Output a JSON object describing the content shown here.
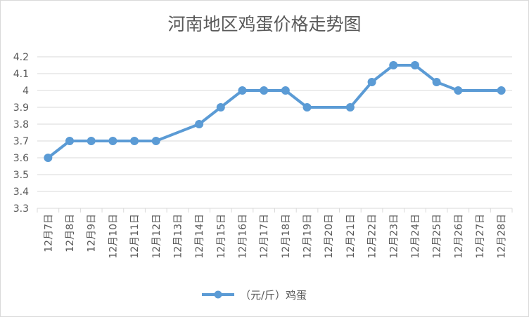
{
  "chart_data": {
    "type": "line",
    "title": "河南地区鸡蛋价格走势图",
    "categories": [
      "12月7日",
      "12月8日",
      "12月9日",
      "12月10日",
      "12月11日",
      "12月12日",
      "12月13日",
      "12月14日",
      "12月15日",
      "12月16日",
      "12月17日",
      "12月18日",
      "12月19日",
      "12月20日",
      "12月21日",
      "12月22日",
      "12月23日",
      "12月24日",
      "12月25日",
      "12月26日",
      "12月27日",
      "12月28日"
    ],
    "series": [
      {
        "name": "（元/斤）鸡蛋",
        "color": "#5b9bd5",
        "values": [
          3.6,
          3.7,
          3.7,
          3.7,
          3.7,
          3.7,
          null,
          3.8,
          3.9,
          4.0,
          4.0,
          4.0,
          3.9,
          null,
          3.9,
          4.05,
          4.15,
          4.15,
          4.05,
          4.0,
          null,
          4.0
        ]
      }
    ],
    "ylim": [
      3.3,
      4.2
    ],
    "yticks": [
      "4.2",
      "4.1",
      "4",
      "3.9",
      "3.8",
      "3.7",
      "3.6",
      "3.5",
      "3.4",
      "3.3"
    ],
    "grid": true,
    "legend_position": "bottom"
  }
}
